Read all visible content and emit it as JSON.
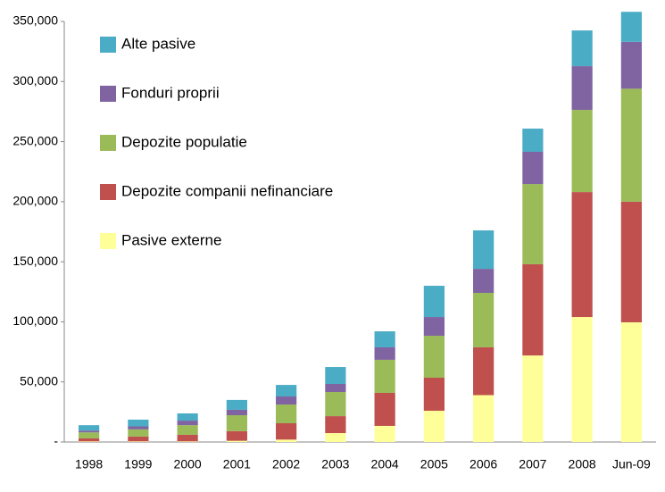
{
  "chart_data": {
    "type": "stacked_bar",
    "categories": [
      "1998",
      "1999",
      "2000",
      "2001",
      "2002",
      "2003",
      "2004",
      "2005",
      "2006",
      "2007",
      "2008",
      "Jun-09"
    ],
    "series": [
      {
        "name": "Pasive externe",
        "color": "#ffff99",
        "values": [
          500,
          500,
          500,
          1000,
          2000,
          7400,
          13400,
          26000,
          39000,
          72000,
          104000,
          99600
        ]
      },
      {
        "name": "Depozite companii nefinanciare",
        "color": "#c0504d",
        "values": [
          2500,
          4000,
          5500,
          8000,
          13600,
          14100,
          27500,
          27500,
          39800,
          75900,
          104000,
          100400
        ]
      },
      {
        "name": "Depozite populatie",
        "color": "#9bbb59",
        "values": [
          5000,
          6000,
          8000,
          13300,
          15600,
          20100,
          27500,
          34900,
          45300,
          66800,
          68400,
          94000
        ]
      },
      {
        "name": "Fonduri proprii",
        "color": "#8064a2",
        "values": [
          1500,
          2500,
          3800,
          4500,
          6700,
          6700,
          10400,
          15600,
          20000,
          26800,
          36400,
          39000
        ]
      },
      {
        "name": "Alte pasive",
        "color": "#4bacc6",
        "values": [
          4500,
          5600,
          6000,
          8200,
          9600,
          14100,
          13300,
          26000,
          32000,
          19300,
          29700,
          25000
        ]
      }
    ],
    "ylim": [
      0,
      350000
    ],
    "yticks": [
      {
        "value": 0,
        "label": "-"
      },
      {
        "value": 50000,
        "label": "50,000"
      },
      {
        "value": 100000,
        "label": "100,000"
      },
      {
        "value": 150000,
        "label": "150,000"
      },
      {
        "value": 200000,
        "label": "200,000"
      },
      {
        "value": 250000,
        "label": "250,000"
      },
      {
        "value": 300000,
        "label": "300,000"
      },
      {
        "value": 350000,
        "label": "350,000"
      }
    ],
    "grid": false,
    "legend": "upper left"
  }
}
